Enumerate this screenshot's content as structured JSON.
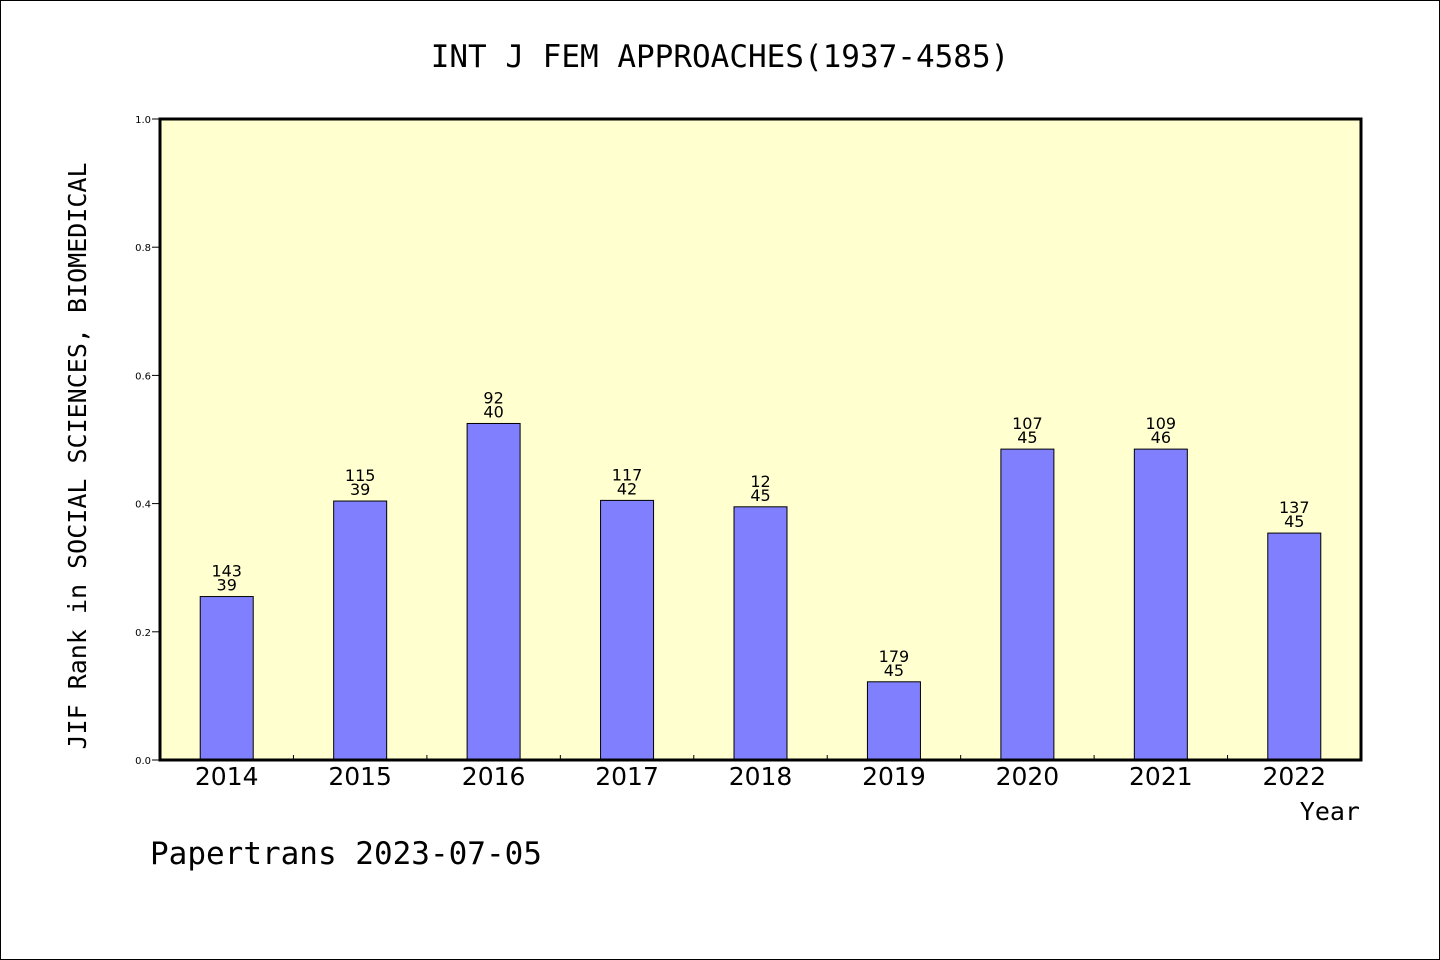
{
  "chart_data": {
    "type": "bar",
    "title": "INT J FEM APPROACHES(1937-4585)",
    "xlabel": "Year",
    "ylabel": "JIF Rank in SOCIAL SCIENCES, BIOMEDICAL",
    "ylim": [
      0,
      1.0
    ],
    "yticks": [
      "0.0",
      "0.2",
      "0.4",
      "0.6",
      "0.8",
      "1.0"
    ],
    "categories": [
      "2014",
      "2015",
      "2016",
      "2017",
      "2018",
      "2019",
      "2020",
      "2021",
      "2022"
    ],
    "values": [
      0.255,
      0.404,
      0.525,
      0.405,
      0.395,
      0.122,
      0.485,
      0.485,
      0.354
    ],
    "label_top": [
      "143",
      "115",
      "92",
      "117",
      "12",
      "179",
      "107",
      "109",
      "137"
    ],
    "label_bottom": [
      "39",
      "39",
      "40",
      "42",
      "45",
      "45",
      "45",
      "46",
      "45"
    ],
    "grid": false,
    "colors": {
      "bar": "#8080ff",
      "plot_background": "#ffffd0",
      "axis": "#000000"
    }
  },
  "footer": {
    "text": "Papertrans 2023-07-05"
  }
}
